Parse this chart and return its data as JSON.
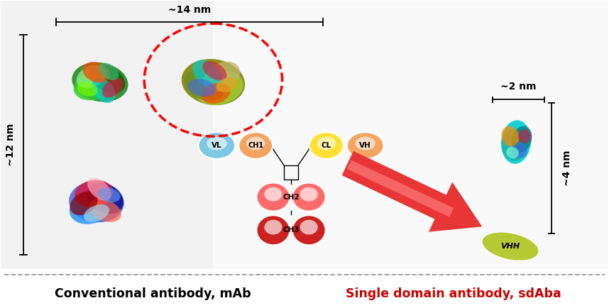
{
  "bg_color": "#e8e8e8",
  "white_bg": "#ffffff",
  "title_left": "Conventional antibody, mAb",
  "title_right": "Single domain antibody, sdAba",
  "title_right_color": "#cc0000",
  "title_left_color": "#000000",
  "dim_14nm": "~14 nm",
  "dim_12nm": "~12 nm",
  "dim_2nm": "~2 nm",
  "dim_4nm": "~4 nm",
  "arrow_color": "#e03030",
  "dashed_line_color": "#999999",
  "bracket_color": "#000000",
  "vhh_label": "VHH",
  "vhh_color": "#b5c934"
}
